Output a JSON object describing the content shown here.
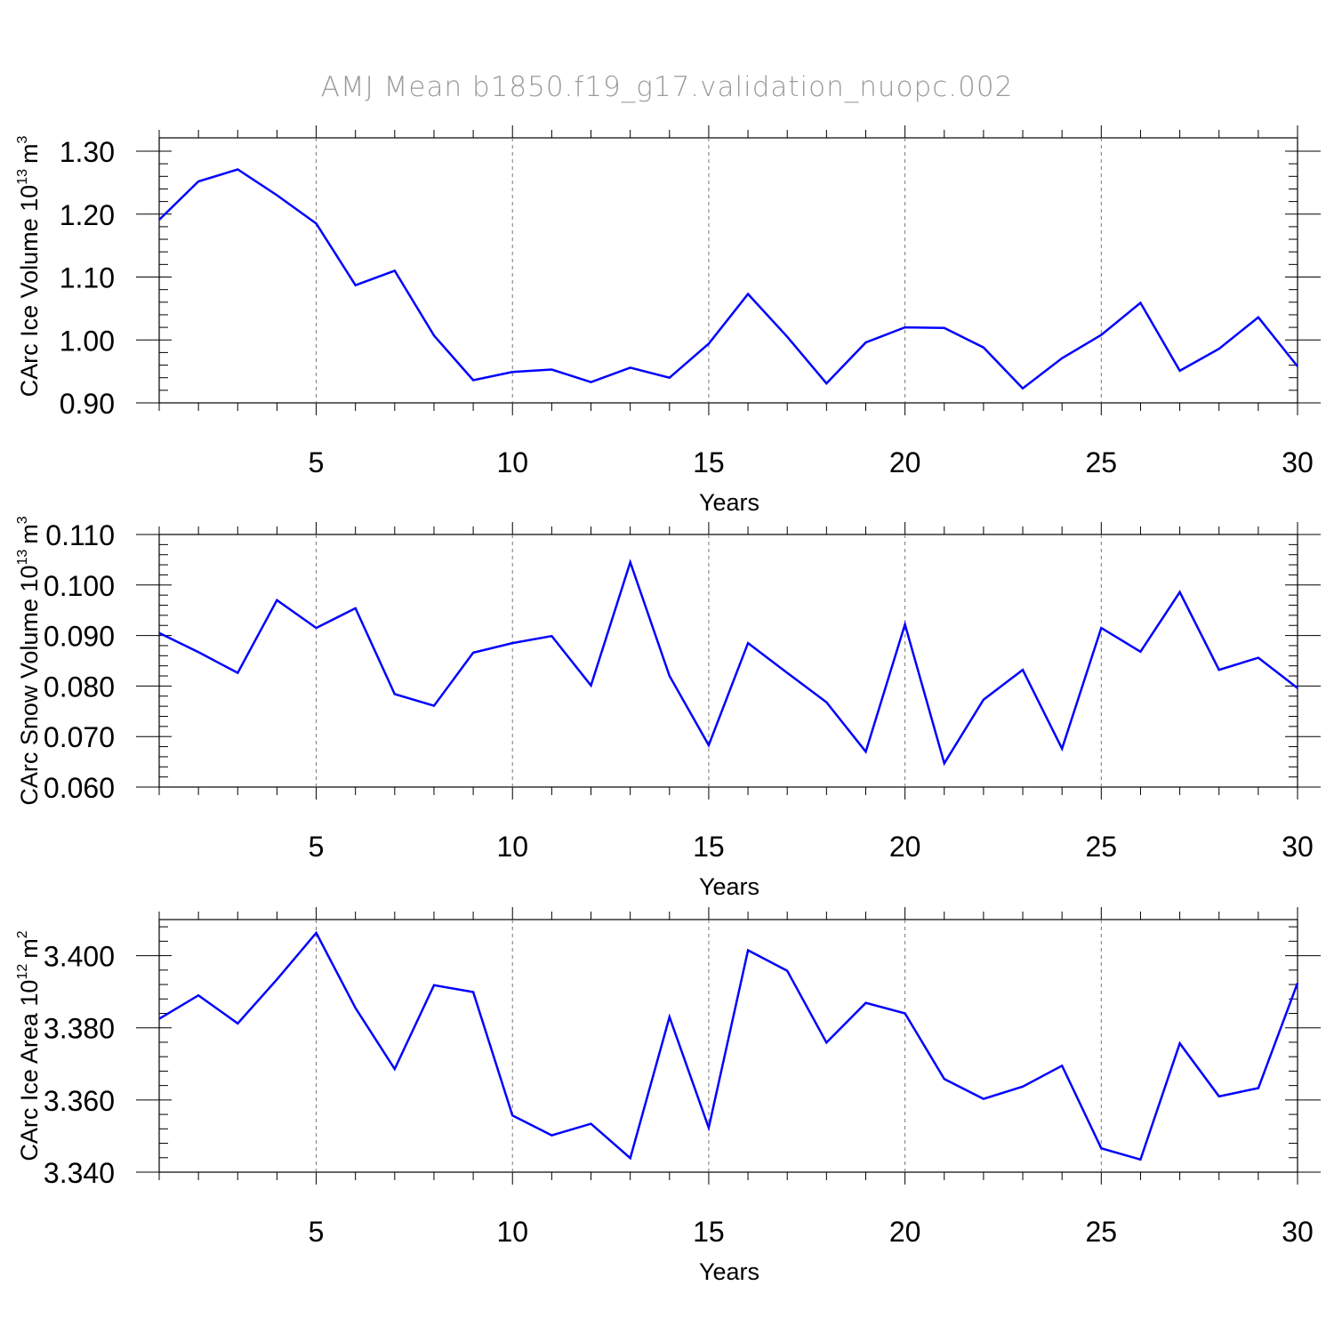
{
  "title": "AMJ Mean b1850.f19_g17.validation_nuopc.002",
  "colors": {
    "line": "#0000ff",
    "axis": "#000000",
    "grid": "#777777",
    "title": "#9a9a9a"
  },
  "chart_data": [
    {
      "type": "line",
      "xlabel": "Years",
      "ylabel": {
        "text": "CArc Ice Volume 10",
        "exp": "13",
        "unit": "m",
        "unit_exp": "3"
      },
      "xlim": [
        1,
        30
      ],
      "ylim": [
        0.9,
        1.3
      ],
      "xticks": [
        5,
        10,
        15,
        20,
        25,
        30
      ],
      "yticks": [
        0.9,
        1.0,
        1.1,
        1.2,
        1.3
      ],
      "ytick_labels": [
        "0.90",
        "1.00",
        "1.10",
        "1.20",
        "1.30"
      ],
      "grid": "vertical-dashed",
      "x": [
        1,
        2,
        3,
        4,
        5,
        6,
        7,
        8,
        9,
        10,
        11,
        12,
        13,
        14,
        15,
        16,
        17,
        18,
        19,
        20,
        21,
        22,
        23,
        24,
        25,
        26,
        27,
        28,
        29,
        30
      ],
      "values": [
        1.191,
        1.252,
        1.271,
        1.23,
        1.185,
        1.087,
        1.11,
        1.007,
        0.936,
        0.949,
        0.953,
        0.933,
        0.956,
        0.94,
        0.994,
        1.073,
        1.005,
        0.931,
        0.996,
        1.02,
        1.019,
        0.988,
        0.923,
        0.971,
        1.008,
        1.059,
        0.951,
        0.986,
        1.036,
        0.958
      ]
    },
    {
      "type": "line",
      "xlabel": "Years",
      "ylabel": {
        "text": "CArc Snow Volume 10",
        "exp": "13",
        "unit": "m",
        "unit_exp": "3"
      },
      "xlim": [
        1,
        30
      ],
      "ylim": [
        0.06,
        0.11
      ],
      "xticks": [
        5,
        10,
        15,
        20,
        25,
        30
      ],
      "yticks": [
        0.06,
        0.07,
        0.08,
        0.09,
        0.1,
        0.11
      ],
      "ytick_labels": [
        "0.060",
        "0.070",
        "0.080",
        "0.090",
        "0.100",
        "0.110"
      ],
      "grid": "vertical-dashed",
      "x": [
        1,
        2,
        3,
        4,
        5,
        6,
        7,
        8,
        9,
        10,
        11,
        12,
        13,
        14,
        15,
        16,
        17,
        18,
        19,
        20,
        21,
        22,
        23,
        24,
        25,
        26,
        27,
        28,
        29,
        30
      ],
      "values": [
        0.0905,
        0.0867,
        0.0826,
        0.097,
        0.0915,
        0.0954,
        0.0784,
        0.0761,
        0.0866,
        0.0885,
        0.0899,
        0.0801,
        0.1045,
        0.082,
        0.0683,
        0.0885,
        0.0826,
        0.0768,
        0.067,
        0.0922,
        0.0647,
        0.0773,
        0.0832,
        0.0676,
        0.0915,
        0.0868,
        0.0986,
        0.0832,
        0.0856,
        0.0796
      ]
    },
    {
      "type": "line",
      "xlabel": "Years",
      "ylabel": {
        "text": "CArc Ice Area 10",
        "exp": "12",
        "unit": "m",
        "unit_exp": "2"
      },
      "xlim": [
        1,
        30
      ],
      "ylim": [
        3.34,
        3.41
      ],
      "xticks": [
        5,
        10,
        15,
        20,
        25,
        30
      ],
      "yticks": [
        3.34,
        3.36,
        3.38,
        3.4
      ],
      "ytick_labels": [
        "3.340",
        "3.360",
        "3.380",
        "3.400"
      ],
      "grid": "vertical-dashed",
      "x": [
        1,
        2,
        3,
        4,
        5,
        6,
        7,
        8,
        9,
        10,
        11,
        12,
        13,
        14,
        15,
        16,
        17,
        18,
        19,
        20,
        21,
        22,
        23,
        24,
        25,
        26,
        27,
        28,
        29,
        30
      ],
      "values": [
        3.3825,
        3.389,
        3.3812,
        3.3934,
        3.4063,
        3.3855,
        3.3686,
        3.3918,
        3.3899,
        3.3557,
        3.3502,
        3.3534,
        3.3439,
        3.383,
        3.3523,
        3.4015,
        3.3958,
        3.3759,
        3.3869,
        3.384,
        3.3658,
        3.3603,
        3.3637,
        3.3695,
        3.3466,
        3.3435,
        3.3757,
        3.361,
        3.3633,
        3.3924
      ]
    }
  ]
}
